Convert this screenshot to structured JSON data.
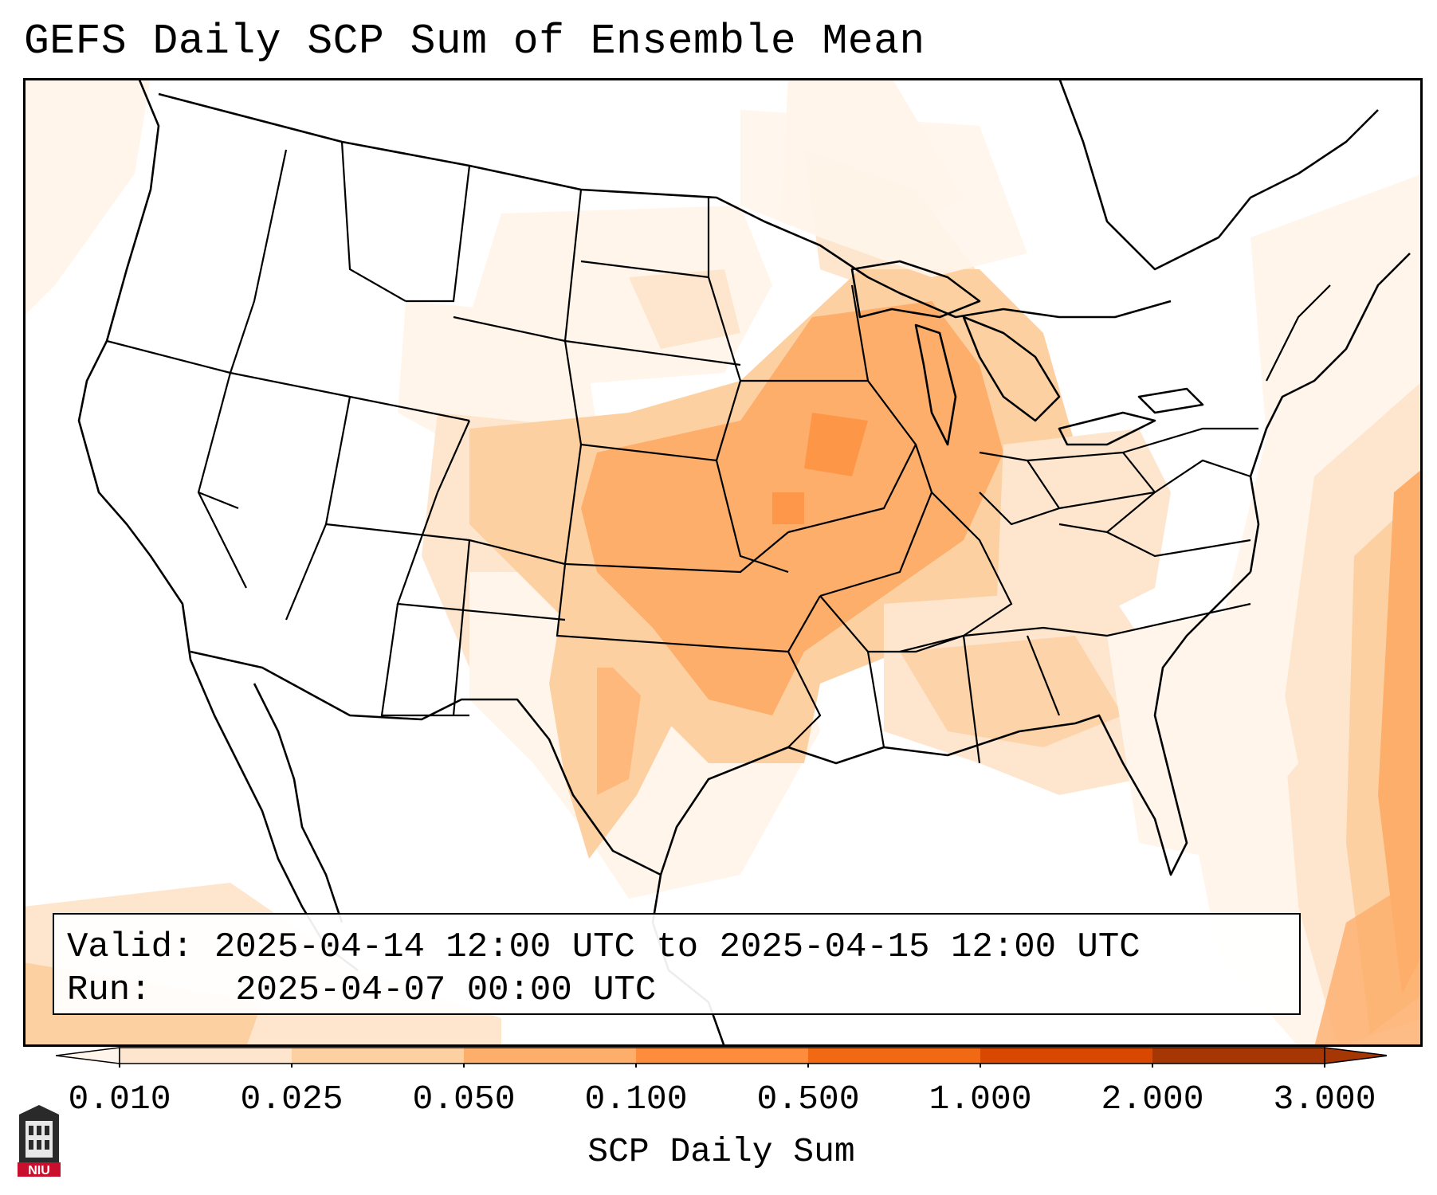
{
  "title": "GEFS Daily SCP Sum of Ensemble Mean",
  "info": {
    "valid_label": "Valid:",
    "valid_value": "2025-04-14 12:00 UTC to 2025-04-15 12:00 UTC",
    "run_label": "Run:",
    "run_value": "2025-04-07 00:00 UTC"
  },
  "colorbar": {
    "label": "SCP Daily Sum",
    "ticks": [
      "0.010",
      "0.025",
      "0.050",
      "0.100",
      "0.500",
      "1.000",
      "2.000",
      "3.000"
    ],
    "colors": [
      "#fff5eb",
      "#fee6ce",
      "#fdd0a2",
      "#fdae6b",
      "#fd8d3c",
      "#f16913",
      "#d94801",
      "#a63603"
    ],
    "extend": "both"
  },
  "logo": {
    "text": "NIU"
  }
}
